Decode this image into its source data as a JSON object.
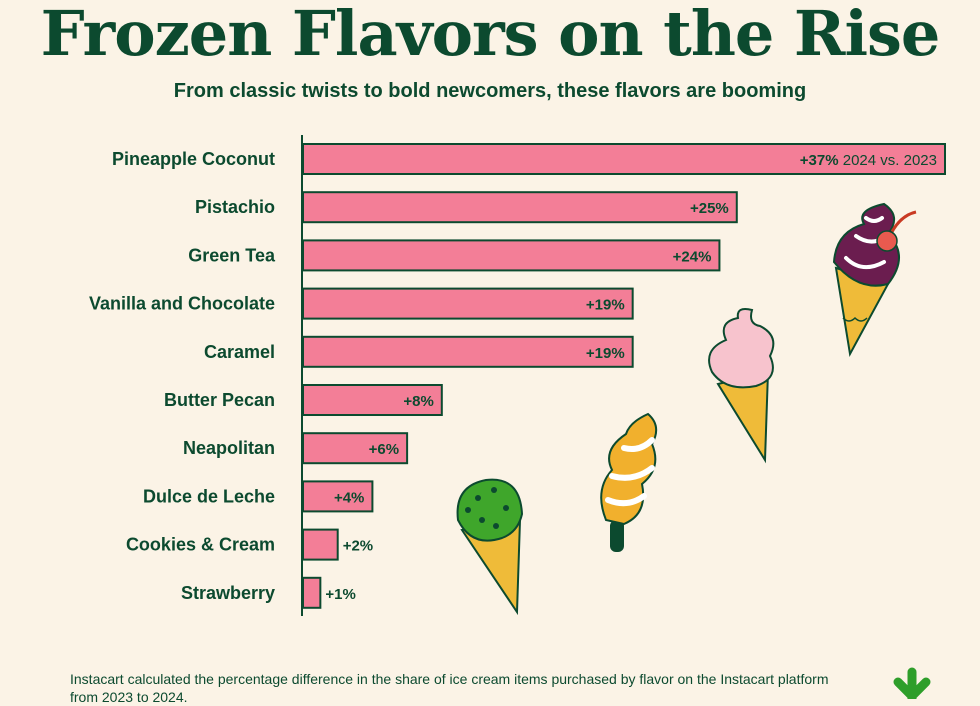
{
  "header": {
    "title": "Frozen Flavors on the Rise",
    "subtitle": "From classic twists to bold newcomers, these flavors are booming"
  },
  "chart_data": {
    "type": "bar",
    "orientation": "horizontal",
    "categories": [
      "Pineapple Coconut",
      "Pistachio",
      "Green Tea",
      "Vanilla and Chocolate",
      "Caramel",
      "Butter Pecan",
      "Neapolitan",
      "Dulce de Leche",
      "Cookies & Cream",
      "Strawberry"
    ],
    "values": [
      37,
      25,
      24,
      19,
      19,
      8,
      6,
      4,
      2,
      1
    ],
    "value_labels": [
      "+37%",
      "+25%",
      "+24%",
      "+19%",
      "+19%",
      "+8%",
      "+6%",
      "+4%",
      "+2%",
      "+1%"
    ],
    "first_bar_note": "2024 vs. 2023",
    "unit": "%",
    "xlim": [
      0,
      37
    ],
    "bar_color": "#f37e97",
    "bar_edge_color": "#0c4a2f",
    "grid": false
  },
  "footnote": "Instacart calculated the percentage difference in the share of ice cream items purchased by flavor on the Instacart platform from 2023 to 2024.",
  "colors": {
    "background": "#fbf3e6",
    "text": "#0c4a2f",
    "accent_green": "#2e9e2a"
  }
}
